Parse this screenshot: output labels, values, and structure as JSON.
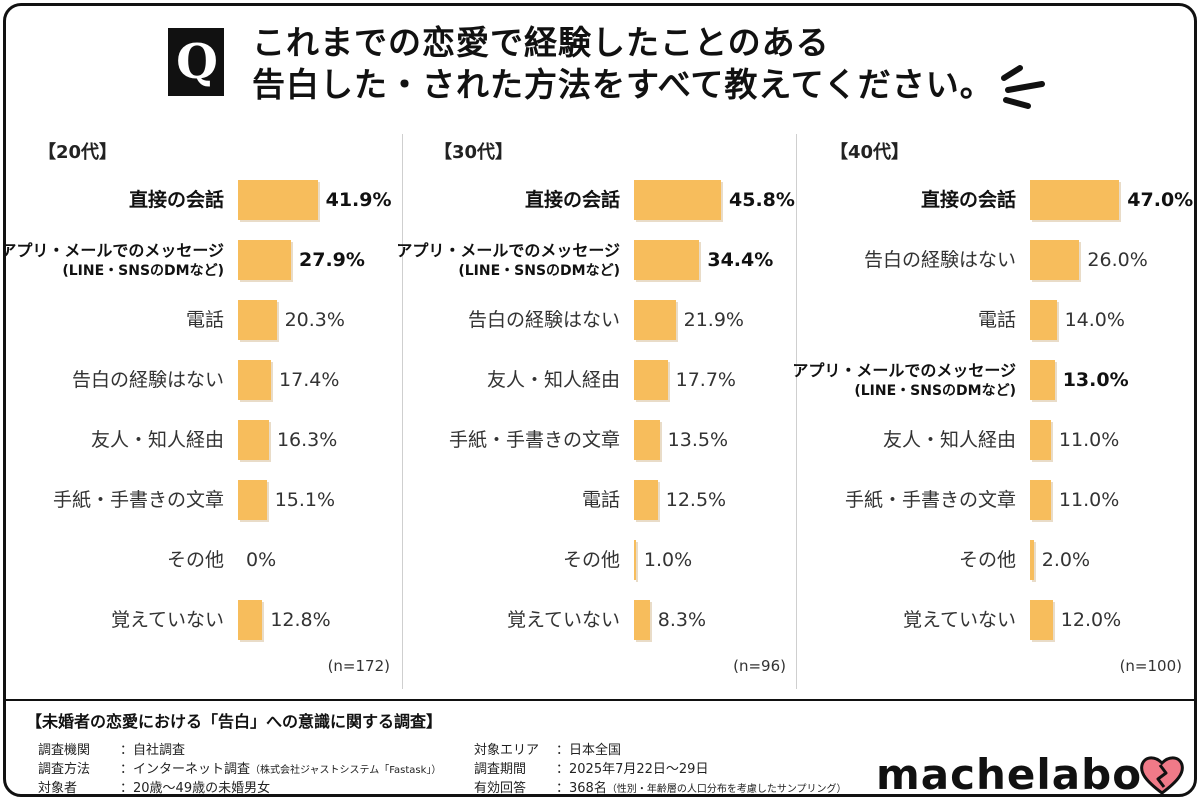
{
  "header": {
    "q_letter": "Q",
    "title_line1": "これまでの恋愛で経験したことのある",
    "title_line2": "告白した・された方法をすべて教えてください。"
  },
  "colors": {
    "bar": "#f7bd5c",
    "accent_heart": "#f07a88",
    "border": "#111111"
  },
  "chart_data": [
    {
      "type": "bar",
      "orientation": "horizontal",
      "group": "【20代】",
      "n": "(n=172)",
      "xlim": [
        0,
        100
      ],
      "categories": [
        "直接の会話",
        "アプリ・メールでのメッセージ|(LINE・SNSのDMなど)",
        "電話",
        "告白の経験はない",
        "友人・知人経由",
        "手紙・手書きの文章",
        "その他",
        "覚えていない"
      ],
      "values": [
        41.9,
        27.9,
        20.3,
        17.4,
        16.3,
        15.1,
        0,
        12.8
      ],
      "labels": [
        "41.9%",
        "27.9%",
        "20.3%",
        "17.4%",
        "16.3%",
        "15.1%",
        "0%",
        "12.8%"
      ],
      "highlight": [
        true,
        true,
        false,
        false,
        false,
        false,
        false,
        false
      ]
    },
    {
      "type": "bar",
      "orientation": "horizontal",
      "group": "【30代】",
      "n": "(n=96)",
      "xlim": [
        0,
        100
      ],
      "categories": [
        "直接の会話",
        "アプリ・メールでのメッセージ|(LINE・SNSのDMなど)",
        "告白の経験はない",
        "友人・知人経由",
        "手紙・手書きの文章",
        "電話",
        "その他",
        "覚えていない"
      ],
      "values": [
        45.8,
        34.4,
        21.9,
        17.7,
        13.5,
        12.5,
        1.0,
        8.3
      ],
      "labels": [
        "45.8%",
        "34.4%",
        "21.9%",
        "17.7%",
        "13.5%",
        "12.5%",
        "1.0%",
        "8.3%"
      ],
      "highlight": [
        true,
        true,
        false,
        false,
        false,
        false,
        false,
        false
      ]
    },
    {
      "type": "bar",
      "orientation": "horizontal",
      "group": "【40代】",
      "n": "(n=100)",
      "xlim": [
        0,
        100
      ],
      "categories": [
        "直接の会話",
        "告白の経験はない",
        "電話",
        "アプリ・メールでのメッセージ|(LINE・SNSのDMなど)",
        "友人・知人経由",
        "手紙・手書きの文章",
        "その他",
        "覚えていない"
      ],
      "values": [
        47.0,
        26.0,
        14.0,
        13.0,
        11.0,
        11.0,
        2.0,
        12.0
      ],
      "labels": [
        "47.0%",
        "26.0%",
        "14.0%",
        "13.0%",
        "11.0%",
        "11.0%",
        "2.0%",
        "12.0%"
      ],
      "highlight": [
        true,
        false,
        false,
        true,
        false,
        false,
        false,
        false
      ]
    }
  ],
  "footer": {
    "title": "【未婚者の恋愛における「告白」への意識に関する調査】",
    "left": [
      {
        "key": "調査機関",
        "value": "：自社調査",
        "note": ""
      },
      {
        "key": "調査方法",
        "value": "：インターネット調査",
        "note": "（株式会社ジャストシステム「Fastask」）"
      },
      {
        "key": "対象者",
        "value": "：20歳〜49歳の未婚男女",
        "note": ""
      }
    ],
    "right": [
      {
        "key": "対象エリア",
        "value": "：日本全国",
        "note": ""
      },
      {
        "key": "調査期間",
        "value": "：2025年7月22日〜29日",
        "note": ""
      },
      {
        "key": "有効回答",
        "value": "：368名",
        "note": "（性別・年齢層の人口分布を考慮したサンプリング）"
      }
    ],
    "brand": "machelabo"
  }
}
